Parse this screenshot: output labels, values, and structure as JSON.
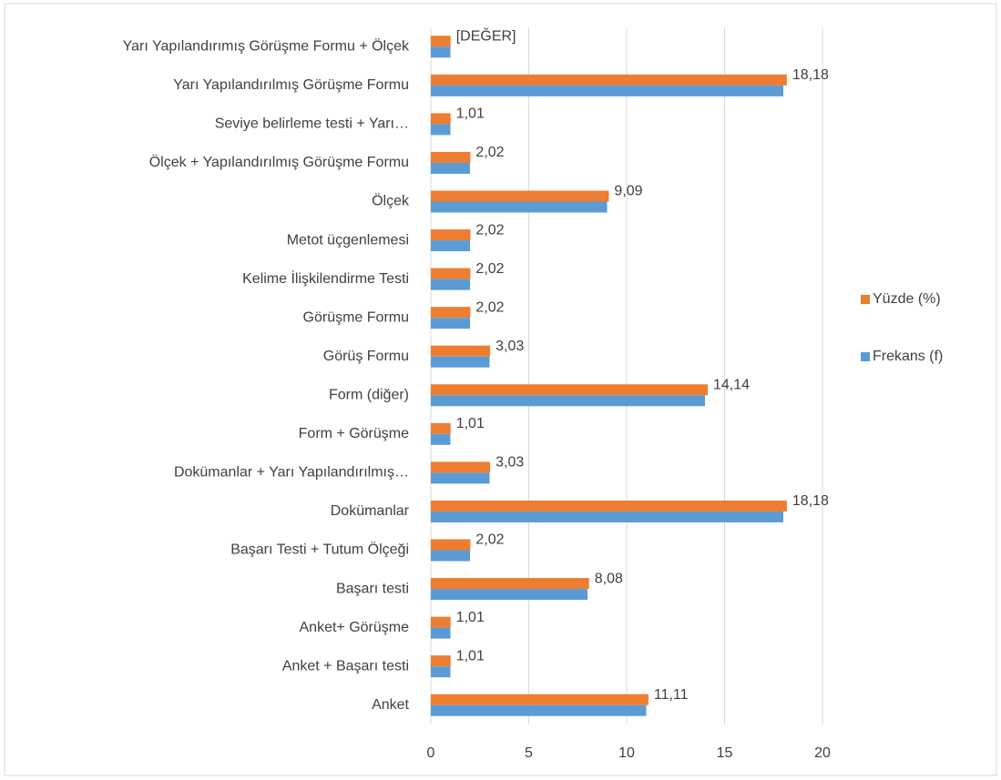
{
  "chart_data": {
    "type": "bar",
    "orientation": "horizontal",
    "categories": [
      "Anket",
      "Anket + Başarı testi",
      "Anket+ Görüşme",
      "Başarı testi",
      "Başarı Testi + Tutum Ölçeği",
      "Dokümanlar",
      "Dokümanlar + Yarı Yapılandırılmış…",
      "Form + Görüşme",
      "Form (diğer)",
      "Görüş Formu",
      "Görüşme Formu",
      "Kelime İlişkilendirme Testi",
      "Metot üçgenlemesi",
      "Ölçek",
      "Ölçek + Yapılandırılmış Görüşme Formu",
      "Seviye belirleme testi + Yarı…",
      "Yarı Yapılandırılmış Görüşme Formu",
      "Yarı Yapılandırımış Görüşme Formu + Ölçek"
    ],
    "series": [
      {
        "name": "Yüzde (%)",
        "color": "#ed7d31",
        "values": [
          11.11,
          1.01,
          1.01,
          8.08,
          2.02,
          18.18,
          3.03,
          1.01,
          14.14,
          3.03,
          2.02,
          2.02,
          2.02,
          9.09,
          2.02,
          1.01,
          18.18,
          1.01
        ],
        "value_labels": [
          "11,11",
          "1,01",
          "1,01",
          "8,08",
          "2,02",
          "18,18",
          "3,03",
          "1,01",
          "14,14",
          "3,03",
          "2,02",
          "2,02",
          "2,02",
          "9,09",
          "2,02",
          "1,01",
          "18,18",
          "[DEĞER]"
        ]
      },
      {
        "name": "Frekans (f)",
        "color": "#5b9bd5",
        "values": [
          11,
          1,
          1,
          8,
          2,
          18,
          3,
          1,
          14,
          3,
          2,
          2,
          2,
          9,
          2,
          1,
          18,
          1
        ]
      }
    ],
    "xlim": [
      0,
      20
    ],
    "xticks": [
      0,
      5,
      10,
      15,
      20
    ],
    "grid": true,
    "legend": "right"
  }
}
